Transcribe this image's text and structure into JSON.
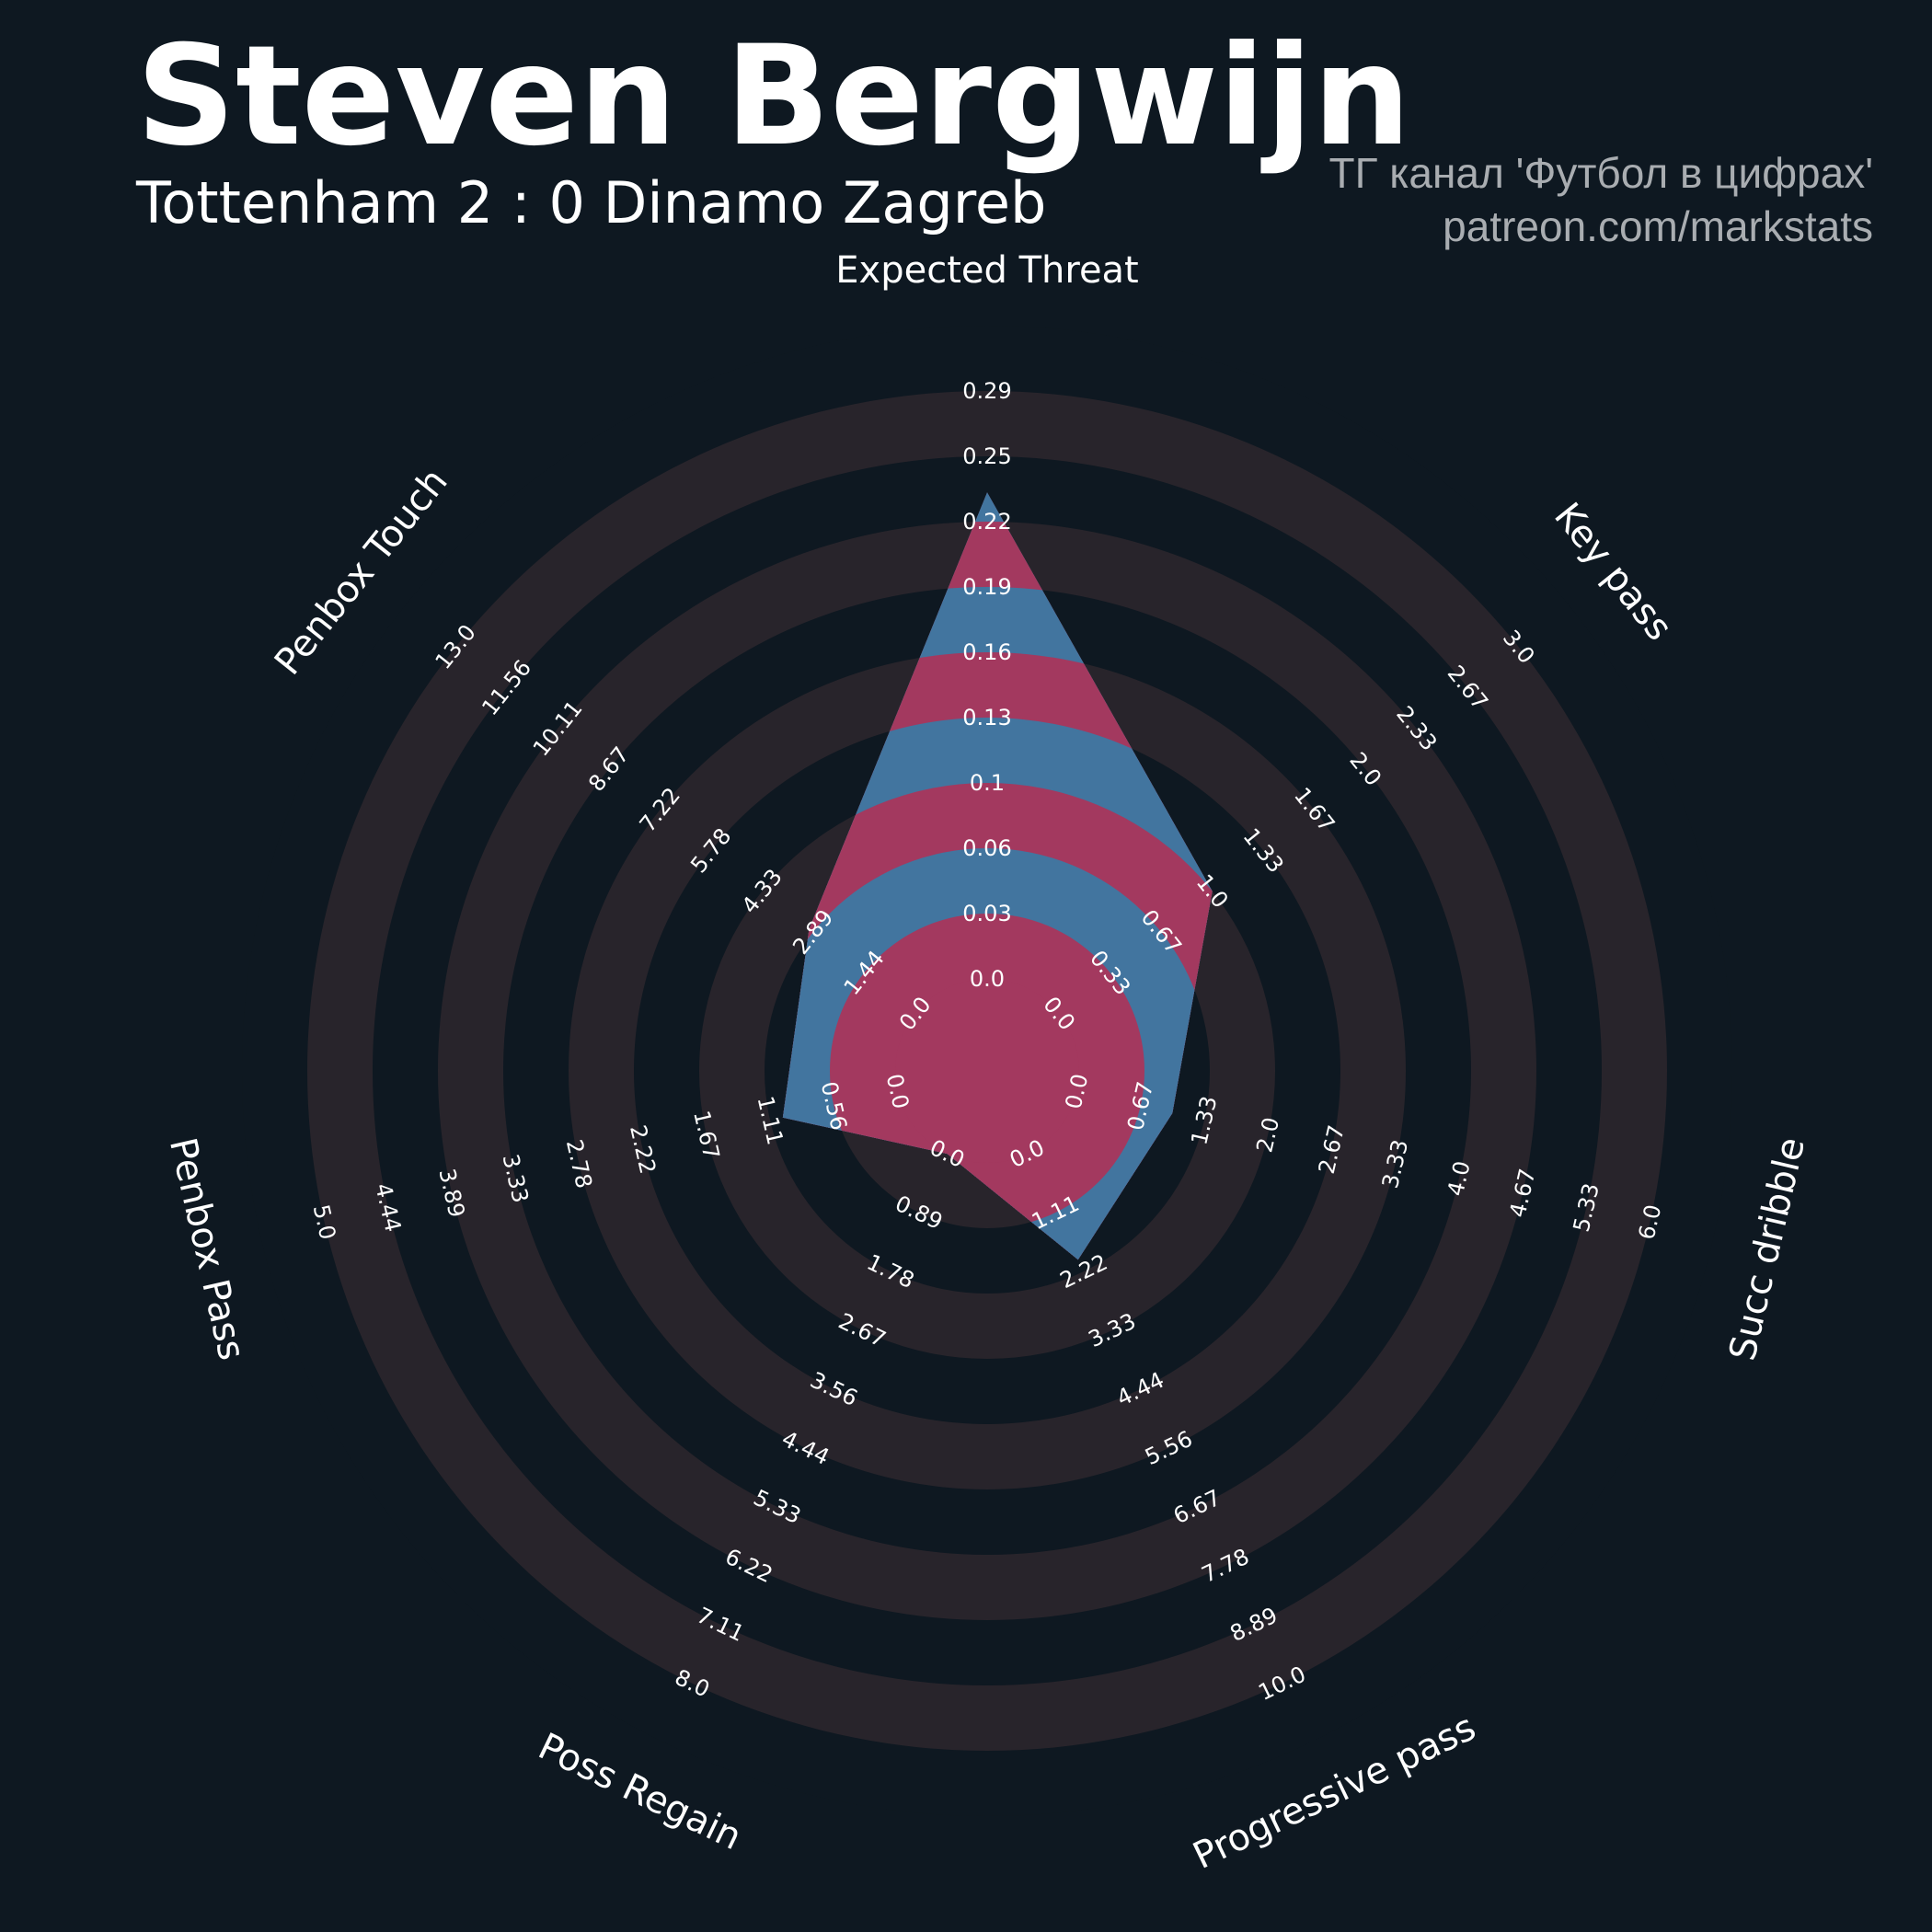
{
  "header": {
    "player": "Steven Bergwijn",
    "match": "Tottenham 2 : 0 Dinamo Zagreb",
    "credit_line1": "ТГ канал 'Футбол в цифрах'",
    "credit_line2": "patreon.com/markstats"
  },
  "chart_data": {
    "type": "radar",
    "colors": {
      "background": "#0e1821",
      "ring_dark": "#0e1821",
      "ring_light": "#28242b",
      "fill_a": "#a3395f",
      "fill_b": "#42759f",
      "text": "#ffffff"
    },
    "axes": [
      {
        "label": "Expected Threat",
        "value": 0.24,
        "ticks": [
          "0.0",
          "0.03",
          "0.06",
          "0.1",
          "0.13",
          "0.16",
          "0.19",
          "0.22",
          "0.25",
          "0.29"
        ]
      },
      {
        "label": "Key pass",
        "value": 1.0,
        "ticks": [
          "0.0",
          "0.33",
          "0.67",
          "1.0",
          "1.33",
          "1.67",
          "2.0",
          "2.33",
          "2.67",
          "3.0"
        ]
      },
      {
        "label": "Succ dribble",
        "value": 1.0,
        "ticks": [
          "0.0",
          "0.67",
          "1.33",
          "2.0",
          "2.67",
          "3.33",
          "4.0",
          "4.67",
          "5.33",
          "6.0"
        ]
      },
      {
        "label": "Progressive pass",
        "value": 2.0,
        "ticks": [
          "0.0",
          "1.11",
          "2.22",
          "3.33",
          "4.44",
          "5.56",
          "6.67",
          "7.78",
          "8.89",
          "10.0"
        ]
      },
      {
        "label": "Poss Regain",
        "value": 0.0,
        "ticks": [
          "0.0",
          "0.89",
          "1.78",
          "2.67",
          "3.56",
          "4.44",
          "5.33",
          "6.22",
          "7.11",
          "8.0"
        ]
      },
      {
        "label": "Penbox Pass",
        "value": 1.0,
        "ticks": [
          "0.0",
          "0.56",
          "1.11",
          "1.67",
          "2.22",
          "2.78",
          "3.33",
          "3.89",
          "4.44",
          "5.0"
        ]
      },
      {
        "label": "Penbox Touch",
        "value": 3.0,
        "ticks": [
          "0.0",
          "1.44",
          "2.89",
          "4.33",
          "5.78",
          "7.22",
          "8.67",
          "10.11",
          "11.56",
          "13.0"
        ]
      }
    ]
  }
}
